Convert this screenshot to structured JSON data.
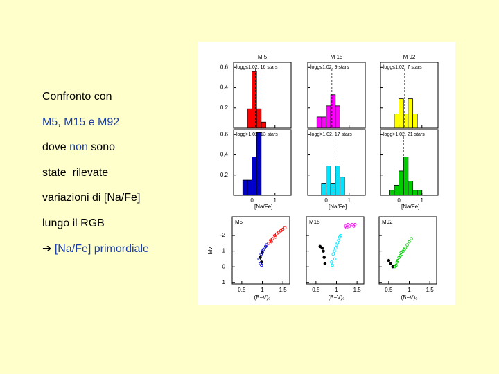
{
  "slide": {
    "bullets": [
      [
        {
          "text": "Confronto con",
          "color": "#000000"
        }
      ],
      [
        {
          "text": "M5, M15 e M92",
          "color": "#1a3ca8"
        }
      ],
      [
        {
          "text": "dove ",
          "color": "#000000"
        },
        {
          "text": "non",
          "color": "#1a3ca8"
        },
        {
          "text": " sono",
          "color": "#000000"
        }
      ],
      [
        {
          "text": "state  rilevate",
          "color": "#000000"
        }
      ],
      [
        {
          "text": "variazioni di [Na/Fe]",
          "color": "#000000"
        }
      ],
      [
        {
          "text": "lungo il RGB",
          "color": "#000000"
        }
      ],
      [
        {
          "text": "➔ ",
          "color": "#000000"
        },
        {
          "text": "[Na/Fe] primordiale",
          "color": "#1a3ca8"
        }
      ]
    ]
  },
  "figure": {
    "hist_xlim": [
      -0.8,
      1.7
    ],
    "hist_xticks": [
      0,
      1
    ],
    "hist_ylim": [
      0,
      0.65
    ],
    "hist_yticks": [
      0.2,
      0.4,
      0.6
    ],
    "hist_xlabel": "[Na/Fe]",
    "bins": [
      -0.4,
      -0.2,
      0,
      0.2,
      0.4,
      0.6,
      0.8,
      1.0
    ],
    "scatter_xlim": [
      0.3,
      1.7
    ],
    "scatter_xticks": [
      0.5,
      1,
      1.5
    ],
    "scatter_ylim": [
      -3.2,
      1.1
    ],
    "scatter_yticks": [
      -2,
      -1,
      0,
      1
    ],
    "scatter_xlabel": "(B−V)₀",
    "scatter_ylabel": "Mv",
    "columns": [
      {
        "title": "M 5",
        "hist_top": {
          "label": "logg≤1.02, 16 stars",
          "color": "#ff0000",
          "counts": [
            0,
            0.19,
            0.56,
            0.19,
            0.06,
            0,
            0
          ],
          "mean": 0.15
        },
        "hist_bottom": {
          "label": "logg>1.02, 13 stars",
          "color": "#0000cc",
          "counts": [
            0.15,
            0.15,
            0.38,
            0.62,
            0,
            0,
            0
          ],
          "mean": 0.3
        },
        "scatter": {
          "label": "M5",
          "series": [
            {
              "color": "#000000",
              "filled": true,
              "x": [
                0.95,
                1.0,
                0.98
              ],
              "y": [
                -0.6,
                -0.9,
                -0.3
              ]
            },
            {
              "color": "#0000cc",
              "filled": false,
              "x": [
                0.92,
                0.97,
                1.0,
                1.03,
                1.05,
                1.08,
                1.1,
                0.95,
                0.98
              ],
              "y": [
                -0.5,
                -0.8,
                -1.0,
                -1.1,
                -1.2,
                -1.3,
                -1.4,
                -0.2,
                -0.1
              ]
            },
            {
              "color": "#ff0000",
              "filled": false,
              "x": [
                1.15,
                1.2,
                1.25,
                1.3,
                1.35,
                1.4,
                1.45,
                1.5,
                1.55,
                1.22,
                1.32
              ],
              "y": [
                -1.5,
                -1.7,
                -1.8,
                -2.0,
                -2.1,
                -2.2,
                -2.3,
                -2.4,
                -2.5,
                -1.6,
                -1.9
              ]
            }
          ]
        }
      },
      {
        "title": "M 15",
        "hist_top": {
          "label": "logg≤1.02, 9 stars",
          "color": "#ff00ff",
          "counts": [
            0.11,
            0.11,
            0.22,
            0.33,
            0.22,
            0,
            0
          ],
          "mean": 0.25
        },
        "hist_bottom": {
          "label": "logg>1.02, 17 stars",
          "color": "#00e5ff",
          "counts": [
            0,
            0.12,
            0.29,
            0.12,
            0.29,
            0.18,
            0
          ],
          "mean": 0.3
        },
        "scatter": {
          "label": "M15",
          "series": [
            {
              "color": "#000000",
              "filled": true,
              "x": [
                0.6,
                0.65,
                0.7,
                0.72,
                0.68
              ],
              "y": [
                -1.3,
                -1.2,
                -0.6,
                -0.2,
                -1.0
              ]
            },
            {
              "color": "#00e5ff",
              "filled": false,
              "x": [
                0.88,
                0.92,
                0.95,
                0.98,
                1.0,
                1.02,
                1.05,
                1.08,
                0.9,
                0.96,
                1.1
              ],
              "y": [
                -0.3,
                -0.8,
                -1.0,
                -1.2,
                -1.4,
                -1.5,
                -1.7,
                -1.9,
                -0.1,
                -0.5,
                -2.0
              ]
            },
            {
              "color": "#ff00ff",
              "filled": false,
              "x": [
                1.22,
                1.28,
                1.32,
                1.38,
                1.42,
                1.45,
                1.25
              ],
              "y": [
                -2.6,
                -2.7,
                -2.6,
                -2.7,
                -2.6,
                -2.7,
                -2.5
              ]
            }
          ]
        }
      },
      {
        "title": "M 92",
        "hist_top": {
          "label": "logg≤1.02, 7 stars",
          "color": "#ffff00",
          "counts": [
            0,
            0.14,
            0.29,
            0.14,
            0.29,
            0.14,
            0
          ],
          "mean": 0.25
        },
        "hist_bottom": {
          "label": "logg>1.02, 21 stars",
          "color": "#00cc00",
          "counts": [
            0.05,
            0.1,
            0.24,
            0.38,
            0.14,
            0.05,
            0.05
          ],
          "mean": 0.2
        },
        "scatter": {
          "label": "M92",
          "series": [
            {
              "color": "#000000",
              "filled": true,
              "x": [
                0.55,
                0.6,
                0.5
              ],
              "y": [
                -0.2,
                0.0,
                -0.4
              ]
            },
            {
              "color": "#00cc00",
              "filled": false,
              "x": [
                0.65,
                0.7,
                0.75,
                0.8,
                0.85,
                0.9,
                0.95,
                1.0,
                1.05,
                0.68,
                0.78,
                0.88,
                0.72,
                0.82
              ],
              "y": [
                0.0,
                -0.3,
                -0.6,
                -0.9,
                -1.0,
                -1.2,
                -1.4,
                -1.6,
                -1.8,
                -0.1,
                -0.7,
                -1.1,
                -0.4,
                -0.8
              ]
            }
          ]
        }
      }
    ]
  }
}
